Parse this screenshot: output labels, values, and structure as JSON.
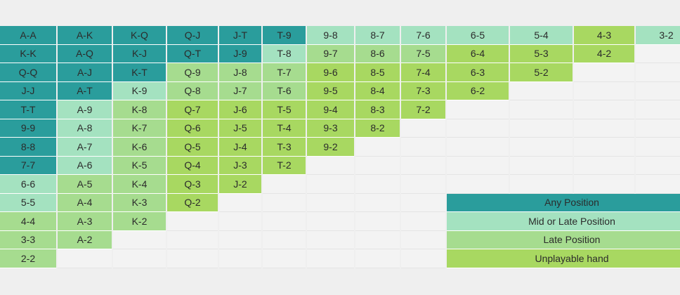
{
  "colors": {
    "any": "#2a9d9c",
    "mid_or_late": "#a4e2c0",
    "late": "#a6dc8f",
    "unplayable": "#a8d861",
    "empty": "#f3f3f3",
    "background": "#efefef"
  },
  "grid": [
    [
      "A-A",
      "A-K",
      "K-Q",
      "Q-J",
      "J-T",
      "T-9",
      "9-8",
      "8-7",
      "7-6",
      "6-5",
      "5-4",
      "4-3",
      "3-2"
    ],
    [
      "K-K",
      "A-Q",
      "K-J",
      "Q-T",
      "J-9",
      "T-8",
      "9-7",
      "8-6",
      "7-5",
      "6-4",
      "5-3",
      "4-2",
      ""
    ],
    [
      "Q-Q",
      "A-J",
      "K-T",
      "Q-9",
      "J-8",
      "T-7",
      "9-6",
      "8-5",
      "7-4",
      "6-3",
      "5-2",
      "",
      ""
    ],
    [
      "J-J",
      "A-T",
      "K-9",
      "Q-8",
      "J-7",
      "T-6",
      "9-5",
      "8-4",
      "7-3",
      "6-2",
      "",
      "",
      ""
    ],
    [
      "T-T",
      "A-9",
      "K-8",
      "Q-7",
      "J-6",
      "T-5",
      "9-4",
      "8-3",
      "7-2",
      "",
      "",
      "",
      ""
    ],
    [
      "9-9",
      "A-8",
      "K-7",
      "Q-6",
      "J-5",
      "T-4",
      "9-3",
      "8-2",
      "",
      "",
      "",
      "",
      ""
    ],
    [
      "8-8",
      "A-7",
      "K-6",
      "Q-5",
      "J-4",
      "T-3",
      "9-2",
      "",
      "",
      "",
      "",
      "",
      ""
    ],
    [
      "7-7",
      "A-6",
      "K-5",
      "Q-4",
      "J-3",
      "T-2",
      "",
      "",
      "",
      "",
      "",
      "",
      ""
    ],
    [
      "6-6",
      "A-5",
      "K-4",
      "Q-3",
      "J-2",
      "",
      "",
      "",
      "",
      "",
      "",
      "",
      ""
    ],
    [
      "5-5",
      "A-4",
      "K-3",
      "Q-2",
      "",
      "",
      "",
      "",
      "",
      "",
      "",
      "",
      ""
    ],
    [
      "4-4",
      "A-3",
      "K-2",
      "",
      "",
      "",
      "",
      "",
      "",
      "",
      "",
      "",
      ""
    ],
    [
      "3-3",
      "A-2",
      "",
      "",
      "",
      "",
      "",
      "",
      "",
      "",
      "",
      "",
      ""
    ],
    [
      "2-2",
      "",
      "",
      "",
      "",
      "",
      "",
      "",
      "",
      "",
      "",
      "",
      ""
    ]
  ],
  "categories": [
    [
      "any",
      "any",
      "any",
      "any",
      "any",
      "any",
      "mid",
      "mid",
      "mid",
      "mid",
      "mid",
      "unp",
      "mid"
    ],
    [
      "any",
      "any",
      "any",
      "any",
      "any",
      "mid",
      "late",
      "late",
      "late",
      "unp",
      "unp",
      "unp",
      "empty"
    ],
    [
      "any",
      "any",
      "any",
      "late",
      "late",
      "late",
      "unp",
      "unp",
      "unp",
      "unp",
      "unp",
      "empty",
      "empty"
    ],
    [
      "any",
      "any",
      "mid",
      "late",
      "late",
      "late",
      "unp",
      "unp",
      "unp",
      "unp",
      "empty",
      "empty",
      "empty"
    ],
    [
      "any",
      "mid",
      "late",
      "unp",
      "unp",
      "unp",
      "unp",
      "unp",
      "unp",
      "empty",
      "empty",
      "empty",
      "empty"
    ],
    [
      "any",
      "mid",
      "late",
      "unp",
      "unp",
      "unp",
      "unp",
      "unp",
      "empty",
      "empty",
      "empty",
      "empty",
      "empty"
    ],
    [
      "any",
      "mid",
      "late",
      "unp",
      "unp",
      "unp",
      "unp",
      "empty",
      "empty",
      "empty",
      "empty",
      "empty",
      "empty"
    ],
    [
      "any",
      "mid",
      "late",
      "unp",
      "unp",
      "unp",
      "empty",
      "empty",
      "empty",
      "empty",
      "empty",
      "empty",
      "empty"
    ],
    [
      "mid",
      "late",
      "late",
      "unp",
      "unp",
      "empty",
      "empty",
      "empty",
      "empty",
      "empty",
      "empty",
      "empty",
      "empty"
    ],
    [
      "mid",
      "late",
      "late",
      "unp",
      "empty",
      "empty",
      "empty",
      "empty",
      "empty",
      "empty",
      "empty",
      "empty",
      "empty"
    ],
    [
      "late",
      "late",
      "late",
      "empty",
      "empty",
      "empty",
      "empty",
      "empty",
      "empty",
      "empty",
      "empty",
      "empty",
      "empty"
    ],
    [
      "late",
      "late",
      "empty",
      "empty",
      "empty",
      "empty",
      "empty",
      "empty",
      "empty",
      "empty",
      "empty",
      "empty",
      "empty"
    ],
    [
      "late",
      "empty",
      "empty",
      "empty",
      "empty",
      "empty",
      "empty",
      "empty",
      "empty",
      "empty",
      "empty",
      "empty",
      "empty"
    ]
  ],
  "legend": [
    {
      "label": "Any Position",
      "category": "any"
    },
    {
      "label": "Mid or Late Position",
      "category": "mid"
    },
    {
      "label": "Late Position",
      "category": "late"
    },
    {
      "label": "Unplayable hand",
      "category": "unp"
    }
  ]
}
